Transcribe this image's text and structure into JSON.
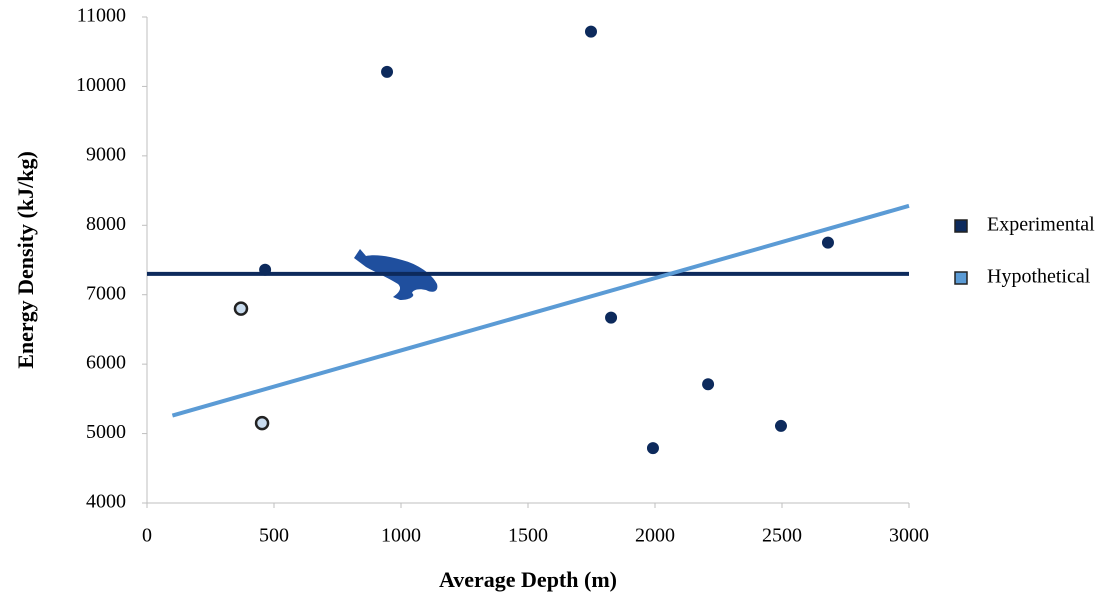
{
  "chart_data": {
    "type": "scatter",
    "x_label": "Average Depth (m)",
    "y_label": "Energy Density (kJ/kg)",
    "xlim": [
      0,
      3000
    ],
    "xticks": [
      0,
      500,
      1000,
      1500,
      2000,
      2500,
      3000
    ],
    "ylim": [
      4000,
      11000
    ],
    "yticks": [
      4000,
      5000,
      6000,
      7000,
      8000,
      9000,
      10000,
      11000
    ],
    "legend": "right",
    "series": [
      {
        "name": "Experimental",
        "color": "#0d2a5c",
        "marker_edge": "#0d2a5c",
        "x": [
          465,
          945,
          1748,
          1827,
          2209,
          1992,
          2496,
          2681
        ],
        "values": [
          7360,
          10210,
          10790,
          6670,
          5710,
          4790,
          5110,
          7750
        ],
        "trend_x": [
          0,
          3000
        ],
        "trend_values": [
          7300,
          7300
        ]
      },
      {
        "name": "Hypothetical",
        "color": "#5b9bd5",
        "marker_fill": "#c9dcef",
        "marker_edge": "#222222",
        "x": [
          370,
          453
        ],
        "values": [
          6800,
          5150
        ],
        "trend_x": [
          100,
          3000
        ],
        "trend_values": [
          5260,
          8280
        ]
      }
    ]
  }
}
